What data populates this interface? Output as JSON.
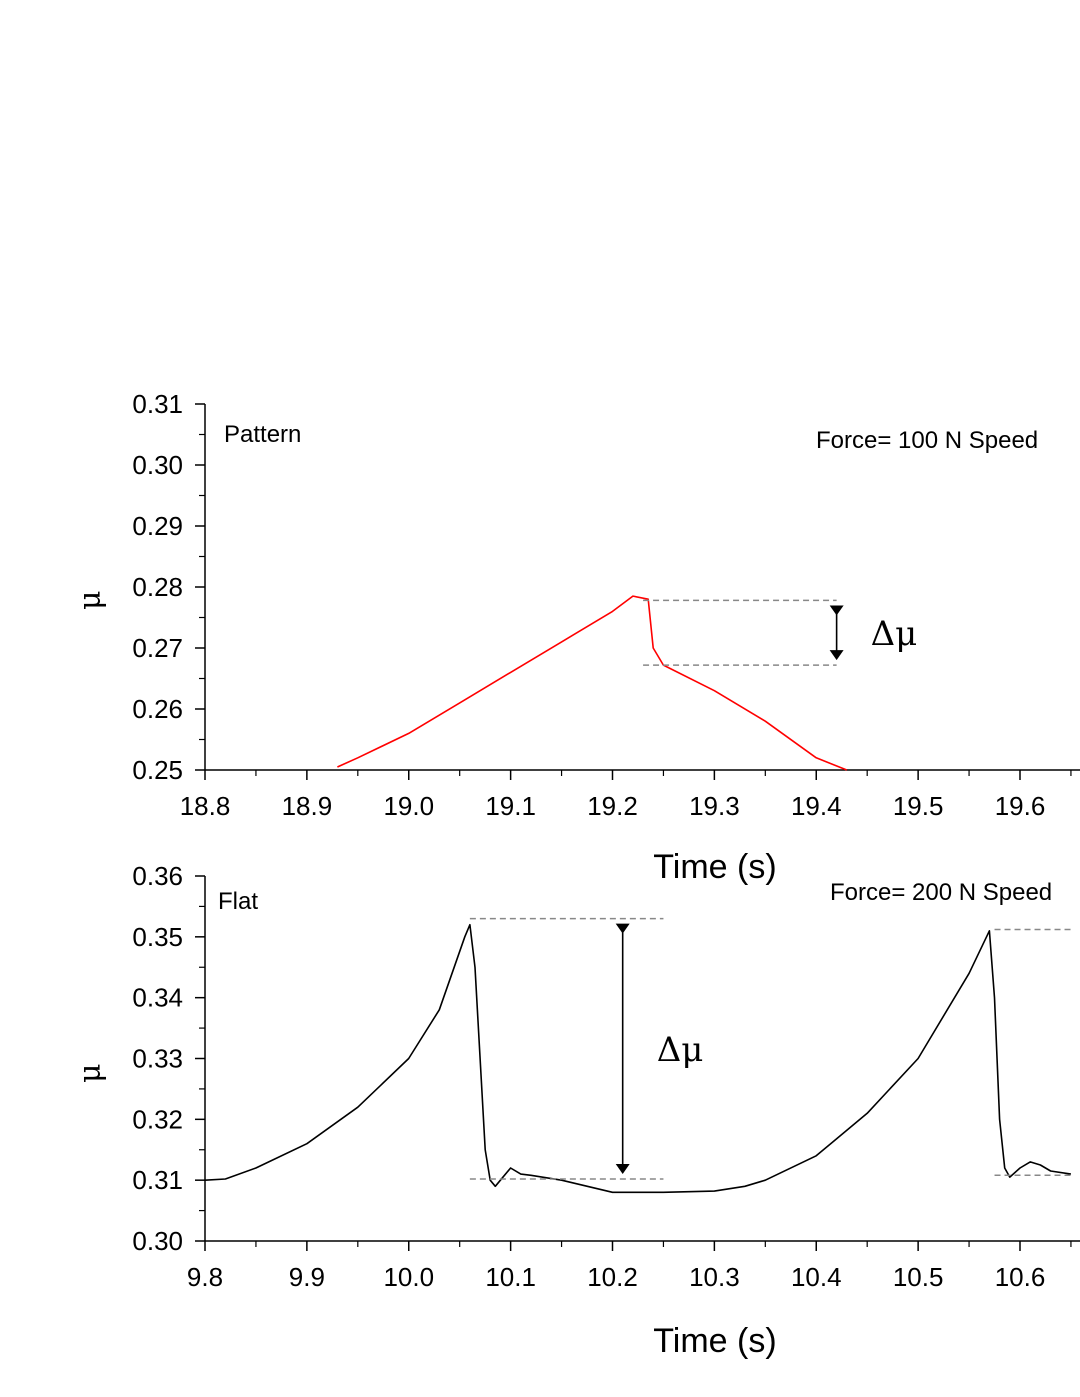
{
  "chart_data": [
    {
      "type": "line",
      "panel_label": "Pattern",
      "condition_label": "Force= 100 N Speed",
      "xlabel": "Time (s)",
      "ylabel": "μ",
      "xlim": [
        18.8,
        19.65
      ],
      "ylim": [
        0.25,
        0.31
      ],
      "x_ticks": [
        "18.8",
        "18.9",
        "19.0",
        "19.1",
        "19.2",
        "19.3",
        "19.4",
        "19.5",
        "19.6"
      ],
      "y_ticks": [
        "0.25",
        "0.26",
        "0.27",
        "0.28",
        "0.29",
        "0.30",
        "0.31"
      ],
      "series_color": "#ff0000",
      "series": [
        {
          "x": [
            18.93,
            18.95,
            19.0,
            19.05,
            19.1,
            19.15,
            19.2,
            19.22,
            19.235,
            19.24,
            19.25,
            19.3,
            19.35,
            19.4,
            19.43
          ],
          "y": [
            0.2505,
            0.252,
            0.256,
            0.261,
            0.266,
            0.271,
            0.276,
            0.2785,
            0.278,
            0.27,
            0.2672,
            0.263,
            0.258,
            0.252,
            0.25
          ]
        }
      ],
      "annotation": {
        "label": "Δμ",
        "upper_y": 0.2778,
        "lower_y": 0.2672,
        "arrow_x": 19.42,
        "line_x_start": 19.23,
        "line_x_end": 19.42
      }
    },
    {
      "type": "line",
      "panel_label": "Flat",
      "condition_label": "Force= 200 N Speed",
      "xlabel": "Time (s)",
      "ylabel": "μ",
      "xlim": [
        9.8,
        10.65
      ],
      "ylim": [
        0.3,
        0.36
      ],
      "x_ticks": [
        "9.8",
        "9.9",
        "10.0",
        "10.1",
        "10.2",
        "10.3",
        "10.4",
        "10.5",
        "10.6"
      ],
      "y_ticks": [
        "0.30",
        "0.31",
        "0.32",
        "0.33",
        "0.34",
        "0.35",
        "0.36"
      ],
      "series_color": "#000000",
      "series": [
        {
          "x": [
            9.8,
            9.82,
            9.85,
            9.9,
            9.95,
            10.0,
            10.03,
            10.055,
            10.06,
            10.065,
            10.07,
            10.075,
            10.08,
            10.085,
            10.09,
            10.1,
            10.11,
            10.12,
            10.15,
            10.2,
            10.25,
            10.3,
            10.33,
            10.35,
            10.4,
            10.45,
            10.5,
            10.55,
            10.57,
            10.575,
            10.58,
            10.585,
            10.59,
            10.6,
            10.61,
            10.62,
            10.63,
            10.65
          ],
          "y": [
            0.31,
            0.3102,
            0.312,
            0.316,
            0.322,
            0.33,
            0.338,
            0.35,
            0.352,
            0.345,
            0.33,
            0.315,
            0.31,
            0.309,
            0.31,
            0.312,
            0.311,
            0.3108,
            0.31,
            0.308,
            0.308,
            0.3082,
            0.309,
            0.31,
            0.314,
            0.321,
            0.33,
            0.344,
            0.351,
            0.34,
            0.32,
            0.312,
            0.3105,
            0.312,
            0.313,
            0.3125,
            0.3115,
            0.311
          ]
        }
      ],
      "annotation": {
        "label": "Δμ",
        "upper_y": 0.353,
        "lower_y": 0.3102,
        "arrow_x": 10.21,
        "line_x_start": 10.06,
        "line_x_end": 10.25,
        "line2_upper_y": 0.3512,
        "line2_lower_y": 0.3108,
        "line2_x_start": 10.575,
        "line2_x_end": 10.65
      }
    }
  ]
}
